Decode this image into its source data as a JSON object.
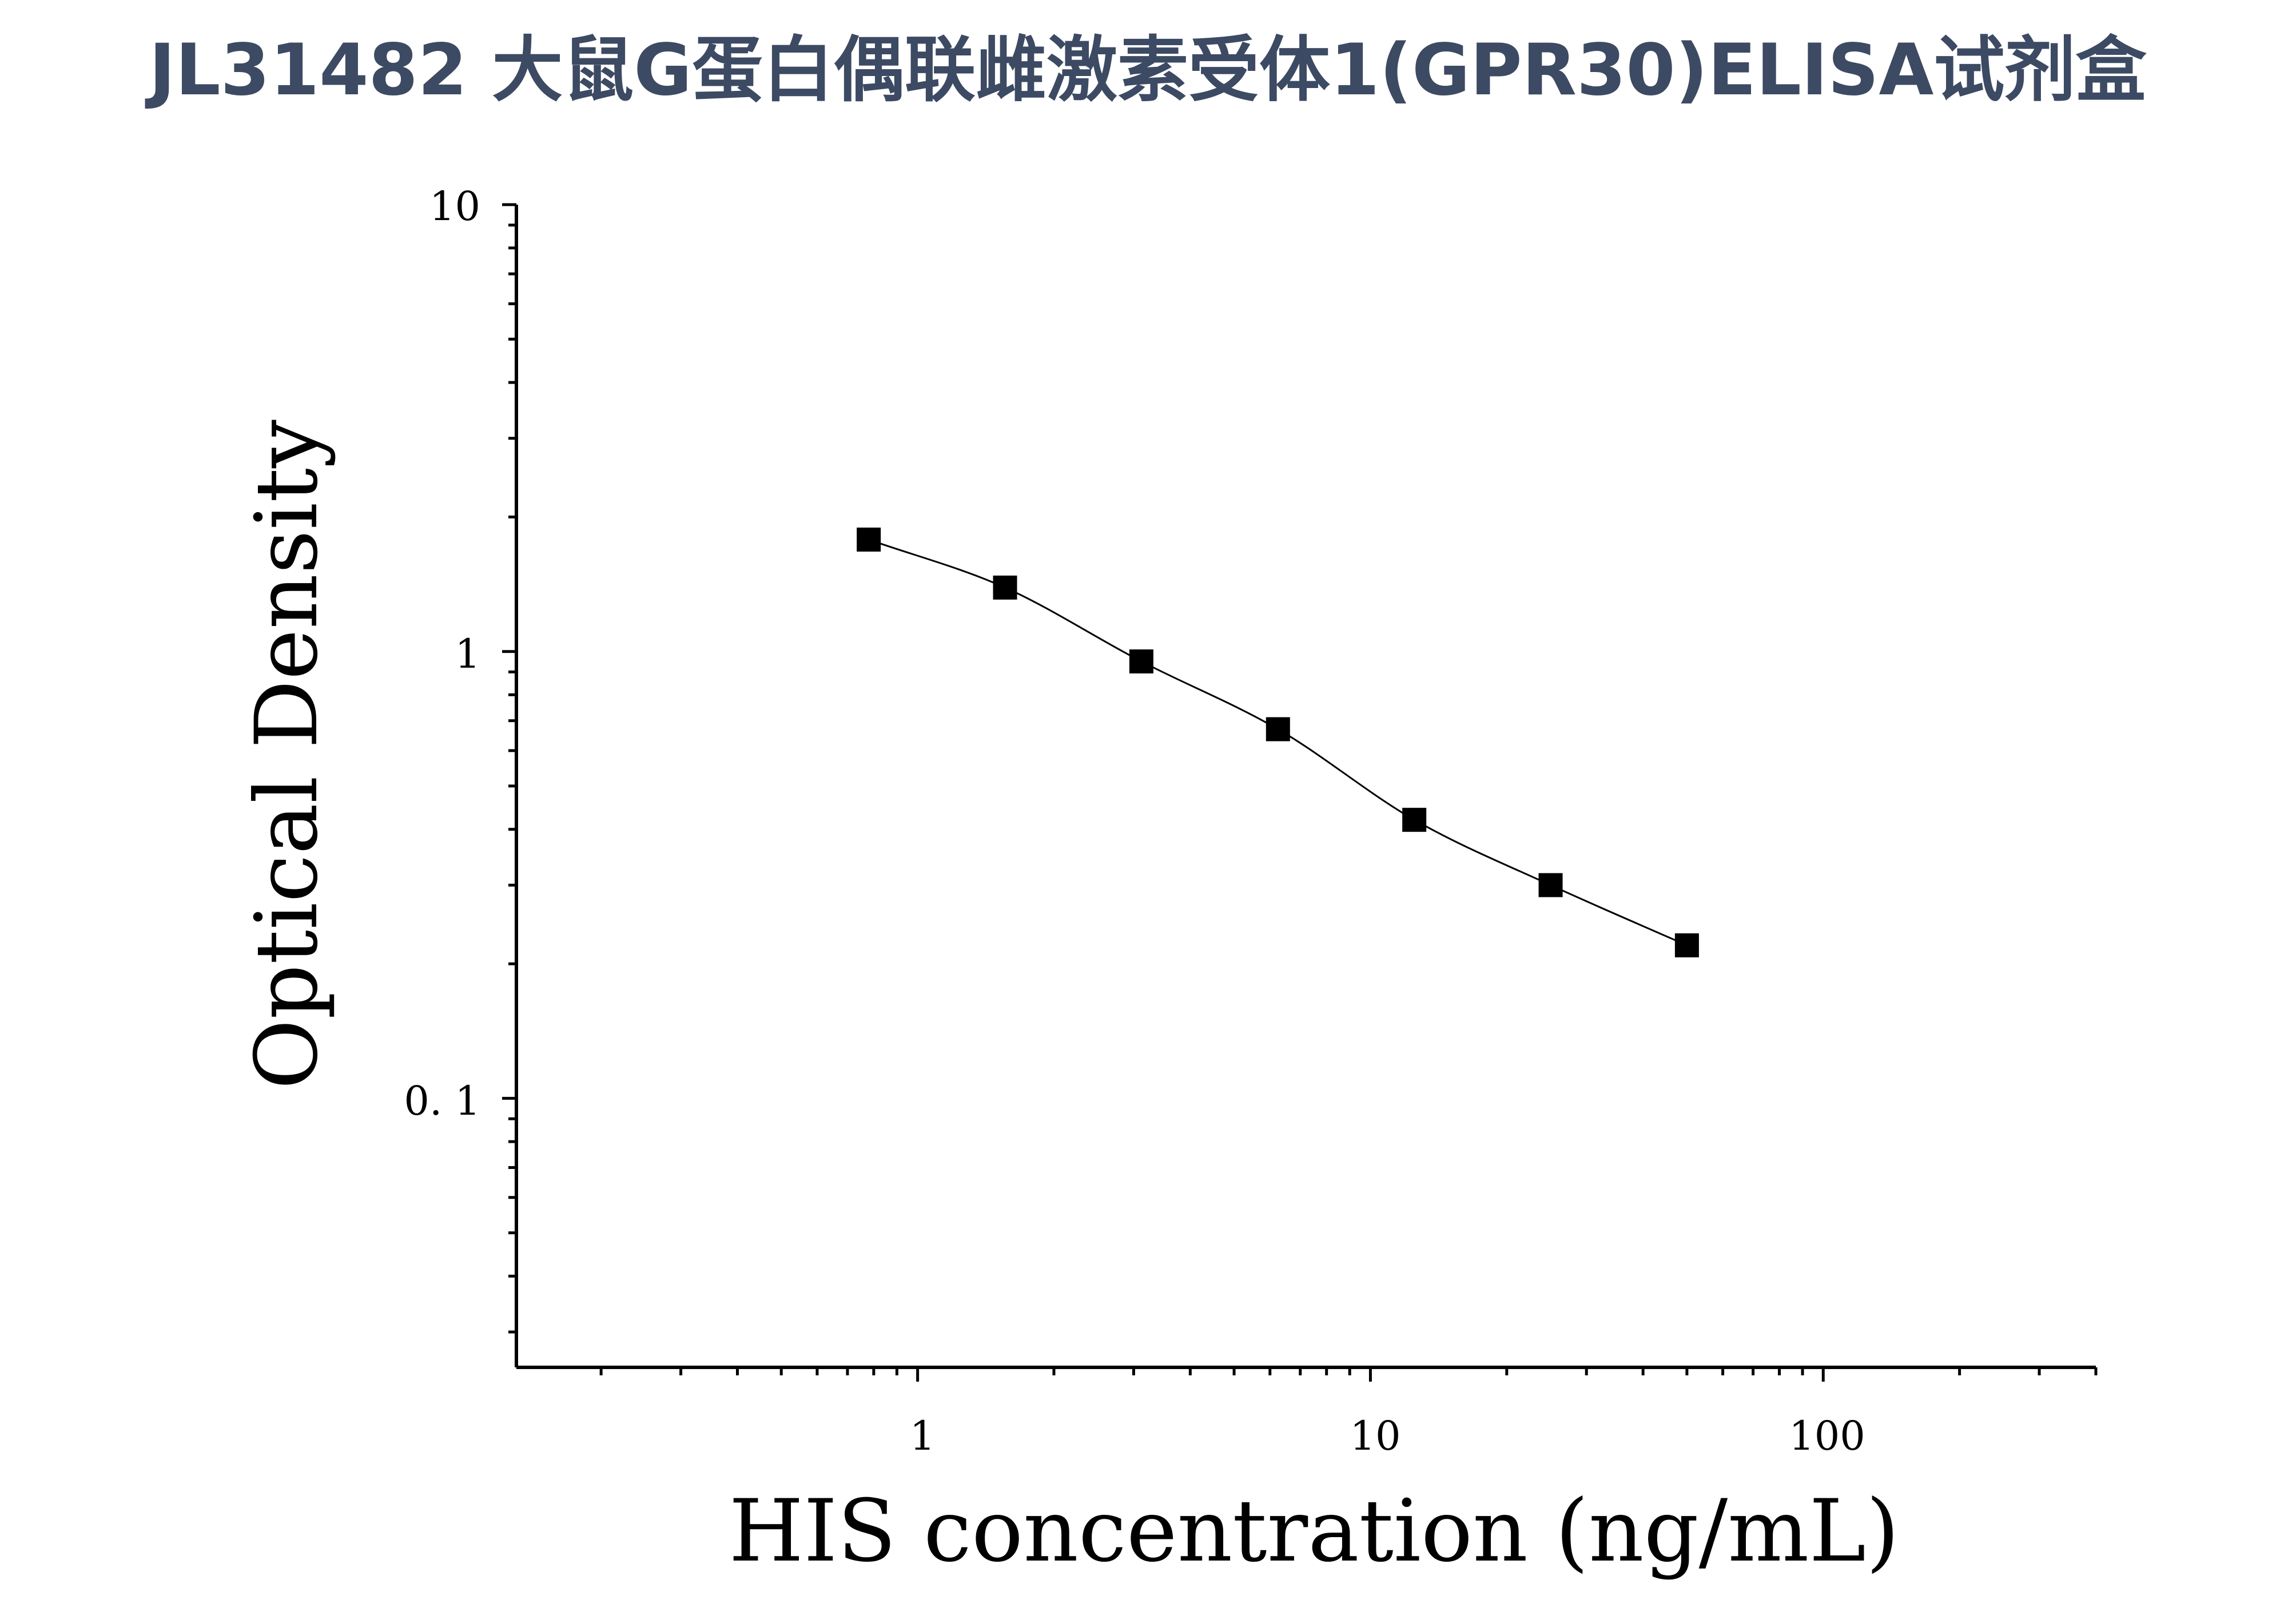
{
  "chart_data": {
    "type": "scatter",
    "title": "JL31482 大鼠G蛋白偶联雌激素受体1(GPR30)ELISA试剂盒",
    "xlabel": "HIS concentration (ng/mL)",
    "ylabel": "Optical Density",
    "x_scale": "log",
    "y_scale": "log",
    "xlim": [
      0.13,
      400
    ],
    "ylim": [
      0.025,
      10
    ],
    "x_tick_labels": [
      "1",
      "10",
      "100"
    ],
    "y_tick_labels": [
      "10",
      "1",
      "0. 1"
    ],
    "series": [
      {
        "x": [
          0.78,
          1.56,
          3.12,
          6.25,
          12.5,
          25,
          50
        ],
        "y": [
          1.78,
          1.39,
          0.95,
          0.67,
          0.42,
          0.3,
          0.22
        ],
        "marker": "square",
        "fit": "4PL curve",
        "color": "#000000"
      }
    ],
    "grid": false,
    "legend": "none"
  }
}
